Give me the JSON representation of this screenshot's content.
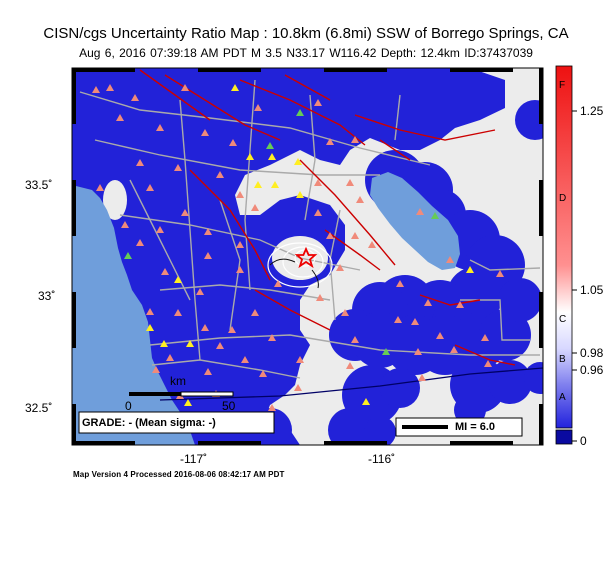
{
  "header": {
    "title": "CISN/cgs Uncertainty Ratio Map : 10.8km (6.8mi) SSW of Borrego Springs, CA",
    "subtitle": "Aug  6, 2016 07:39:18 AM PDT   M 3.5   N33.17 W116.42   Depth: 12.4km   ID:37437039"
  },
  "axes": {
    "lat_ticks": [
      "33.5˚",
      "33˚",
      "32.5˚"
    ],
    "lon_ticks": [
      "-117˚",
      "-116˚"
    ]
  },
  "colorbar": {
    "letters": [
      "F",
      "D",
      "C",
      "B",
      "A"
    ],
    "values": [
      "1.25",
      "1.05",
      "0.98",
      "0.96",
      "0"
    ],
    "colors": {
      "high": "#ee2222",
      "mid": "#ffffff",
      "low": "#1111cc"
    }
  },
  "scale_bar": {
    "unit": "km",
    "start": "0",
    "end": "50"
  },
  "grade_box": {
    "text": "GRADE: - (Mean sigma: -)"
  },
  "legend": {
    "text": "MI = 6.0"
  },
  "footer": {
    "text": "Map Version 4 Processed 2016-08-06 08:42:17 AM PDT"
  },
  "epicenter": {
    "lat": 33.17,
    "lon": -116.42,
    "marker": "red-star"
  },
  "colors": {
    "ocean": "#6f9edb",
    "land_blue": "#2020d8",
    "land_light": "#eeeeee",
    "stations_red": "#f08a7a",
    "stations_yellow": "#ffee22",
    "stations_green": "#66cc55",
    "faults": "#cc0000",
    "roads": "#aaaaaa"
  }
}
